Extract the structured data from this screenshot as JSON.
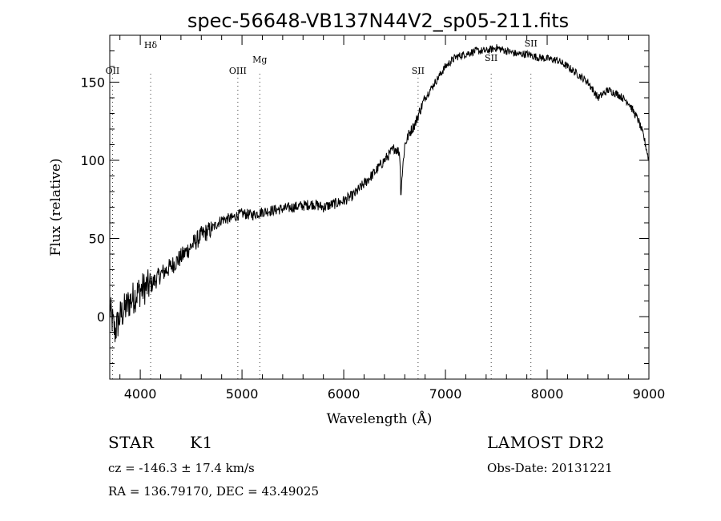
{
  "chart_data": {
    "type": "line",
    "title": "spec-56648-VB137N44V2_sp05-211.fits",
    "xlabel": "Wavelength (Å)",
    "ylabel": "Flux (relative)",
    "xlim": [
      3700,
      9000
    ],
    "ylim": [
      -40,
      180
    ],
    "x_ticks": [
      4000,
      5000,
      6000,
      7000,
      8000,
      9000
    ],
    "x_tick_labels": [
      "4000",
      "5000",
      "6000",
      "7000",
      "8000",
      "9000"
    ],
    "y_ticks": [
      0,
      50,
      100,
      150
    ],
    "y_tick_labels": [
      "0",
      "50",
      "100",
      "150"
    ],
    "spectral_lines": [
      {
        "label": "OII",
        "wavelength": 3727
      },
      {
        "label": "Hδ",
        "wavelength": 4102
      },
      {
        "label": "OIII",
        "wavelength": 4959
      },
      {
        "label": "Mg",
        "wavelength": 5175
      },
      {
        "label": "SII",
        "wavelength": 6731
      },
      {
        "label": "SII",
        "wavelength": 7450
      },
      {
        "label": "SII",
        "wavelength": 7840
      }
    ],
    "series": [
      {
        "name": "flux",
        "x": [
          3700,
          3750,
          3800,
          3850,
          3900,
          4000,
          4100,
          4200,
          4300,
          4400,
          4500,
          4600,
          4700,
          4800,
          4900,
          5000,
          5100,
          5200,
          5300,
          5400,
          5500,
          5600,
          5700,
          5800,
          5900,
          6000,
          6100,
          6200,
          6300,
          6400,
          6500,
          6550,
          6563,
          6600,
          6650,
          6700,
          6750,
          6800,
          6850,
          6900,
          7000,
          7100,
          7200,
          7300,
          7400,
          7500,
          7600,
          7700,
          7800,
          7900,
          8000,
          8100,
          8200,
          8300,
          8400,
          8500,
          8600,
          8700,
          8800,
          8900,
          8950,
          9000
        ],
        "values": [
          5,
          -10,
          0,
          5,
          10,
          17,
          20,
          27,
          32,
          38,
          45,
          52,
          56,
          62,
          63,
          66,
          65,
          67,
          68,
          69,
          70,
          71,
          72,
          70,
          72,
          74,
          78,
          85,
          92,
          100,
          108,
          105,
          82,
          110,
          118,
          123,
          132,
          140,
          145,
          150,
          160,
          166,
          168,
          170,
          170,
          172,
          170,
          168,
          168,
          166,
          165,
          164,
          160,
          155,
          150,
          140,
          145,
          142,
          137,
          125,
          115,
          100
        ]
      }
    ]
  },
  "info": {
    "object_class": "STAR",
    "subclass": "K1",
    "survey": "LAMOST DR2",
    "cz": "cz = -146.3 ± 17.4 km/s",
    "obs_date": "Obs-Date: 20131221",
    "ra_dec": "RA = 136.79170, DEC =  43.49025"
  }
}
